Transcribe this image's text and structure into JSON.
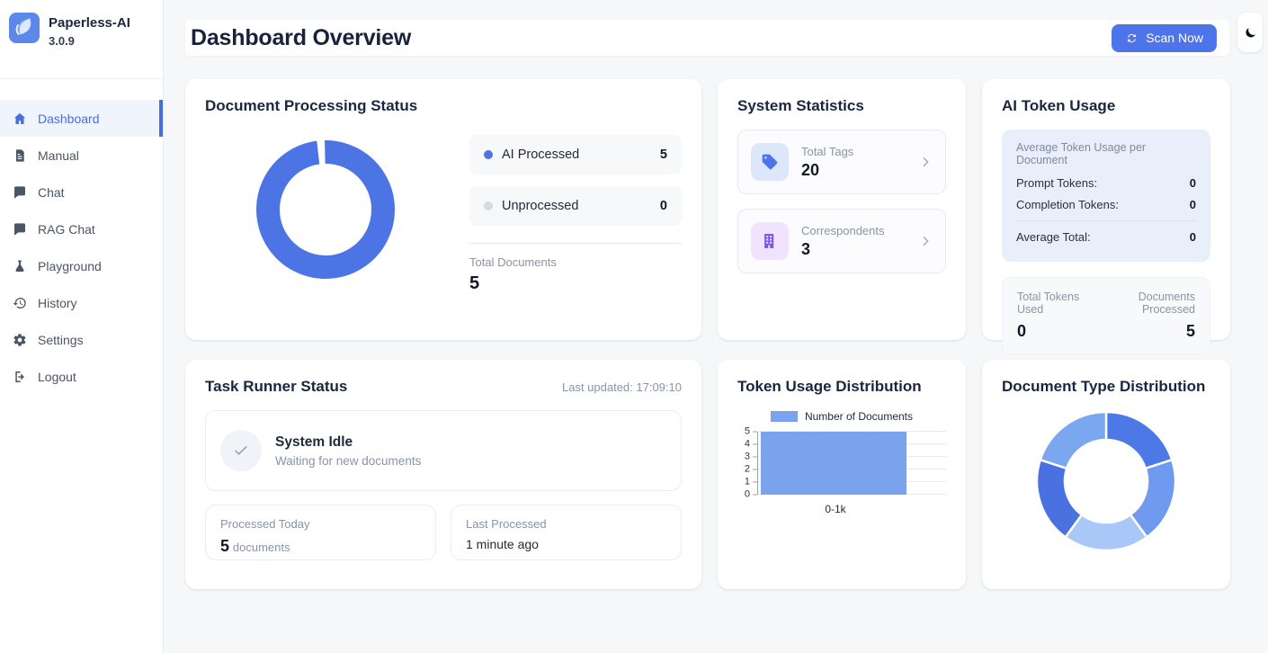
{
  "app": {
    "name": "Paperless-AI",
    "version": "3.0.9",
    "logo_icon": "leaf-icon"
  },
  "sidebar": {
    "items": [
      {
        "label": "Dashboard",
        "icon": "home-icon",
        "active": true
      },
      {
        "label": "Manual",
        "icon": "document-icon",
        "active": false
      },
      {
        "label": "Chat",
        "icon": "chat-bubble-icon",
        "active": false
      },
      {
        "label": "RAG Chat",
        "icon": "chat-bubble-icon",
        "active": false
      },
      {
        "label": "Playground",
        "icon": "flask-icon",
        "active": false
      },
      {
        "label": "History",
        "icon": "history-clock-icon",
        "active": false
      },
      {
        "label": "Settings",
        "icon": "gear-icon",
        "active": false
      },
      {
        "label": "Logout",
        "icon": "logout-icon",
        "active": false
      }
    ]
  },
  "header": {
    "title": "Dashboard Overview",
    "scan_button_label": "Scan Now",
    "scan_button_icon": "refresh-icon",
    "theme_toggle_icon": "moon-icon"
  },
  "cards": {
    "processing": {
      "title": "Document Processing Status",
      "total_label": "Total Documents",
      "total_value": "5"
    },
    "system_stats": {
      "title": "System Statistics",
      "stats": [
        {
          "label": "Total Tags",
          "value": "20",
          "icon": "tag-icon",
          "icon_color": "#4d74e8",
          "icon_bg": "#dde7fb"
        },
        {
          "label": "Correspondents",
          "value": "3",
          "icon": "building-icon",
          "icon_color": "#7c52e8",
          "icon_bg": "#efe3fd"
        }
      ]
    },
    "token_usage": {
      "title": "AI Token Usage",
      "avg_header": "Average Token Usage per Document",
      "rows": [
        {
          "label": "Prompt Tokens:",
          "value": "0"
        },
        {
          "label": "Completion Tokens:",
          "value": "0"
        }
      ],
      "avg_total": {
        "label": "Average Total:",
        "value": "0"
      },
      "totals": [
        {
          "label": "Total Tokens Used",
          "value": "0"
        },
        {
          "label": "Documents Processed",
          "value": "5"
        }
      ]
    },
    "task_runner": {
      "title": "Task Runner Status",
      "last_updated": "Last updated: 17:09:10",
      "status_icon": "check-icon",
      "status_title": "System Idle",
      "status_subtitle": "Waiting for new documents",
      "processed_today": {
        "label": "Processed Today",
        "value": "5",
        "unit": "documents"
      },
      "last_processed": {
        "label": "Last Processed",
        "value": "1 minute ago"
      }
    },
    "token_distribution": {
      "title": "Token Usage Distribution"
    },
    "doc_type": {
      "title": "Document Type Distribution"
    }
  },
  "colors": {
    "primary": "#4d74e8",
    "bar_blue": "#7ba2ec",
    "page_bg": "#f5f7f9",
    "active_nav": "#4a6fdc"
  },
  "chart_data": [
    {
      "id": "processing-donut",
      "type": "pie",
      "style": "donut",
      "title": "Document Processing Status",
      "labels": [
        "AI Processed",
        "Unprocessed"
      ],
      "values": [
        5,
        0
      ],
      "colors": [
        "#4d74e5",
        "#d6dae1"
      ],
      "legend_position": "right",
      "total_label": "Total Documents",
      "total": 5
    },
    {
      "id": "token-usage-bar",
      "type": "bar",
      "title": "Token Usage Distribution",
      "categories": [
        "0-1k"
      ],
      "values": [
        5
      ],
      "series_label": "Number of Documents",
      "bar_color": "#7ba2ec",
      "xlabel": "",
      "ylabel": "",
      "ylim": [
        0,
        5
      ],
      "yticks": [
        0,
        1,
        2,
        3,
        4,
        5
      ],
      "grid": true,
      "legend_position": "top"
    },
    {
      "id": "doc-type-donut",
      "type": "pie",
      "style": "donut",
      "title": "Document Type Distribution",
      "values": [
        1,
        1,
        1,
        1,
        1
      ],
      "colors": [
        "#4d79e6",
        "#6f9aef",
        "#aac8f7",
        "#4a71e0",
        "#7ba6f0"
      ],
      "legend_position": "none"
    }
  ]
}
